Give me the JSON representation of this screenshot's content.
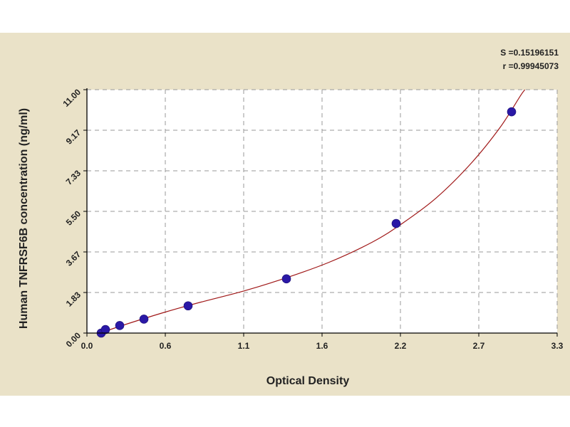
{
  "chart_data": {
    "type": "scatter",
    "xlabel": "Optical Density",
    "ylabel": "Human TNFRSF6B concentration (ng/ml)",
    "xlim": [
      0.0,
      3.3
    ],
    "ylim": [
      0.0,
      11.0
    ],
    "x_ticks": [
      "0.0",
      "0.6",
      "1.1",
      "1.6",
      "2.2",
      "2.7",
      "3.3"
    ],
    "x_tick_values": [
      0.0,
      0.55,
      1.1,
      1.65,
      2.2,
      2.75,
      3.3
    ],
    "y_ticks": [
      "0.00",
      "1.83",
      "3.67",
      "5.50",
      "7.33",
      "9.17",
      "11.00"
    ],
    "y_tick_values": [
      0.0,
      1.833,
      3.667,
      5.5,
      7.333,
      9.167,
      11.0
    ],
    "grid": true,
    "series": [
      {
        "points": [
          {
            "x": 0.1,
            "y": 0.0
          },
          {
            "x": 0.13,
            "y": 0.16
          },
          {
            "x": 0.23,
            "y": 0.34
          },
          {
            "x": 0.4,
            "y": 0.63
          },
          {
            "x": 0.71,
            "y": 1.23
          },
          {
            "x": 1.4,
            "y": 2.45
          },
          {
            "x": 2.17,
            "y": 4.95
          },
          {
            "x": 2.98,
            "y": 10.0
          }
        ]
      }
    ],
    "fit_curve": {
      "points": [
        {
          "x": 0.1,
          "y": 0.02
        },
        {
          "x": 0.3,
          "y": 0.45
        },
        {
          "x": 0.55,
          "y": 0.95
        },
        {
          "x": 0.8,
          "y": 1.4
        },
        {
          "x": 1.1,
          "y": 1.9
        },
        {
          "x": 1.4,
          "y": 2.5
        },
        {
          "x": 1.7,
          "y": 3.2
        },
        {
          "x": 2.0,
          "y": 4.1
        },
        {
          "x": 2.2,
          "y": 4.9
        },
        {
          "x": 2.45,
          "y": 6.1
        },
        {
          "x": 2.7,
          "y": 7.7
        },
        {
          "x": 2.9,
          "y": 9.3
        },
        {
          "x": 3.05,
          "y": 10.8
        },
        {
          "x": 3.09,
          "y": 11.1
        }
      ]
    },
    "stats": [
      "S =0.15196151",
      "r =0.99945073"
    ]
  },
  "colors": {
    "background": "#eae2c8",
    "plot_area": "#ffffff",
    "grid": "#9a9a9a",
    "curve": "#a01818",
    "marker": "#2a18a6",
    "axis": "#000000"
  }
}
